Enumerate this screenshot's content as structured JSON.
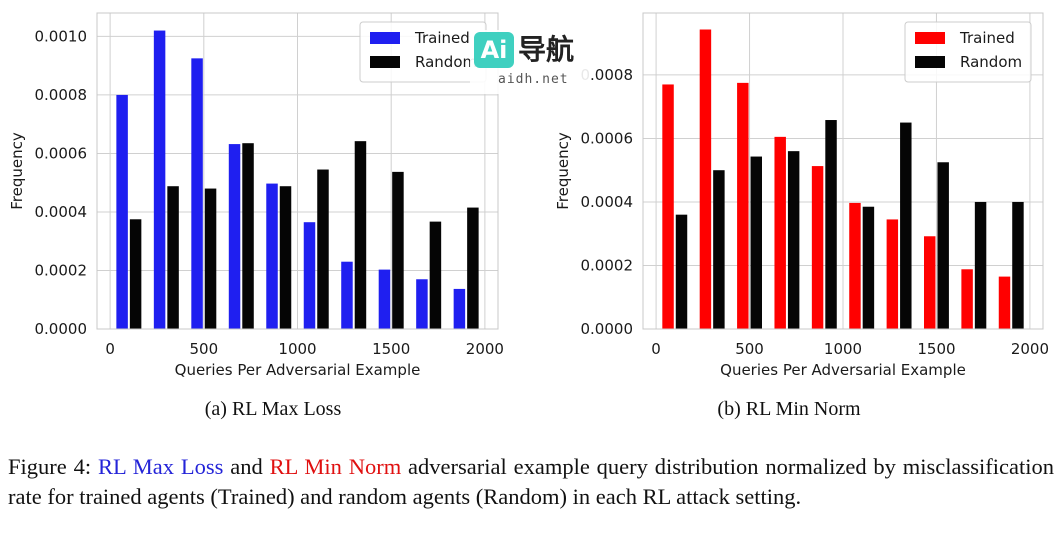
{
  "chart_data": [
    {
      "type": "bar",
      "id": "a",
      "subcaption": "(a) RL Max Loss",
      "xlabel": "Queries Per Adversarial Example",
      "ylabel": "Frequency",
      "xlim": [
        -70,
        2070
      ],
      "ylim": [
        0,
        0.00108
      ],
      "xticks": [
        0,
        500,
        1000,
        1500,
        2000
      ],
      "xtick_labels": [
        "0",
        "500",
        "1000",
        "1500",
        "2000"
      ],
      "yticks": [
        0,
        0.0002,
        0.0004,
        0.0006,
        0.0008,
        0.001
      ],
      "ytick_labels": [
        "0.0000",
        "0.0002",
        "0.0004",
        "0.0006",
        "0.0008",
        "0.0010"
      ],
      "grid": true,
      "legend_position": "top-right",
      "bin_centers": [
        100,
        300,
        500,
        700,
        900,
        1100,
        1300,
        1500,
        1700,
        1900
      ],
      "bar_width": 72,
      "series": [
        {
          "name": "Trained",
          "color": "#1f1ff0",
          "values": [
            0.0008,
            0.00102,
            0.000925,
            0.000632,
            0.000497,
            0.000365,
            0.00023,
            0.000203,
            0.00017,
            0.000137
          ]
        },
        {
          "name": "Random",
          "color": "#050505",
          "values": [
            0.000375,
            0.000488,
            0.00048,
            0.000635,
            0.000488,
            0.000545,
            0.000642,
            0.000537,
            0.000367,
            0.000415
          ]
        }
      ]
    },
    {
      "type": "bar",
      "id": "b",
      "subcaption": "(b) RL Min Norm",
      "xlabel": "Queries Per Adversarial Example",
      "ylabel": "Frequency",
      "xlim": [
        -70,
        2070
      ],
      "ylim": [
        0,
        0.000995
      ],
      "xticks": [
        0,
        500,
        1000,
        1500,
        2000
      ],
      "xtick_labels": [
        "0",
        "500",
        "1000",
        "1500",
        "2000"
      ],
      "yticks": [
        0,
        0.0002,
        0.0004,
        0.0006,
        0.0008
      ],
      "ytick_labels": [
        "0.0000",
        "0.0002",
        "0.0004",
        "0.0006",
        "0.0008"
      ],
      "grid": true,
      "legend_position": "top-right",
      "bin_centers": [
        100,
        300,
        500,
        700,
        900,
        1100,
        1300,
        1500,
        1700,
        1900
      ],
      "bar_width": 72,
      "series": [
        {
          "name": "Trained",
          "color": "#ff0000",
          "values": [
            0.00077,
            0.000943,
            0.000775,
            0.000605,
            0.000513,
            0.000397,
            0.000345,
            0.000292,
            0.000188,
            0.000165
          ]
        },
        {
          "name": "Random",
          "color": "#050505",
          "values": [
            0.00036,
            0.0005,
            0.000543,
            0.00056,
            0.000658,
            0.000385,
            0.00065,
            0.000525,
            0.0004,
            0.0004
          ]
        }
      ]
    }
  ],
  "caption": {
    "prefix": "Figure 4: ",
    "term_blue": "RL Max Loss",
    "middle": " and ",
    "term_red": "RL Min Norm",
    "rest": " adversarial example query distribution normalized by misclassification rate for trained agents (Trained) and random agents (Random) in each RL attack setting."
  },
  "watermark": {
    "logo_text": "Ai",
    "cn_text": "导航",
    "url_text": "aidh.net"
  }
}
